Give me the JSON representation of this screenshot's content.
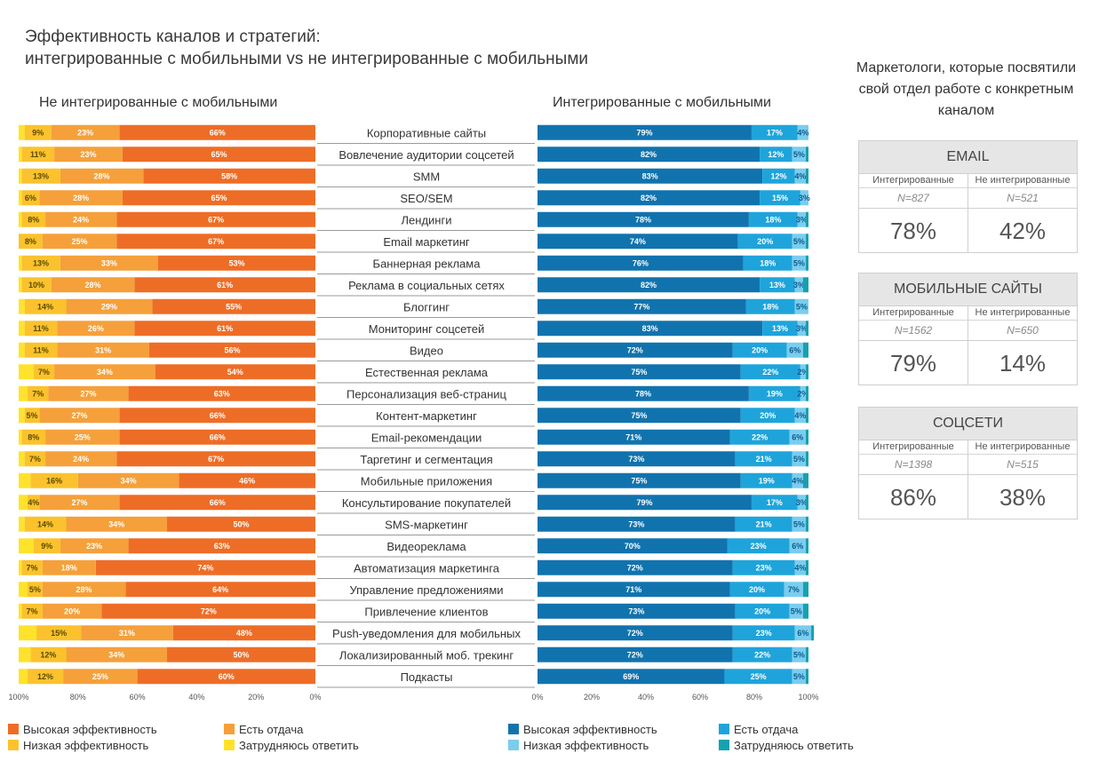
{
  "title": {
    "line1": "Эффективность каналов и стратегий:",
    "line2": "интегрированные с мобильными vs не интегрированные с мобильными"
  },
  "colors": {
    "left": {
      "high": "#ee6d26",
      "return": "#f5a03a",
      "low": "#fbc22d",
      "unsure": "#ffe22c"
    },
    "right": {
      "high": "#1173ae",
      "return": "#1ea4db",
      "low": "#7acdee",
      "unsure": "#15a1b0"
    }
  },
  "chart_data": [
    {
      "type": "bar",
      "orientation": "horizontal-stacked",
      "direction": "right-to-left",
      "title": "Не интегрированные с мобильными",
      "xlim": [
        0,
        100
      ],
      "xticks": [
        "100%",
        "80%",
        "60%",
        "40%",
        "20%",
        "0%"
      ],
      "categories": [
        "Корпоративные сайты",
        "Вовлечение аудитории соцсетей",
        "SMM",
        "SEO/SEM",
        "Лендинги",
        "Email маркетинг",
        "Баннерная реклама",
        "Реклама в социальных сетях",
        "Блоггинг",
        "Мониторинг соцсетей",
        "Видео",
        "Естественная реклама",
        "Персонализация веб-страниц",
        "Контент-маркетинг",
        "Email-рекомендации",
        "Таргетинг и сегментация",
        "Мобильные приложения",
        "Консультирование покупателей",
        "SMS-маркетинг",
        "Видеореклама",
        "Автоматизация маркетинга",
        "Управление предложениями",
        "Привлечение клиентов",
        "Push-уведомления для мобильных",
        "Локализированный моб. трекинг",
        "Подкасты"
      ],
      "series": [
        {
          "name": "Высокая эффективность",
          "values": [
            66,
            65,
            58,
            65,
            67,
            67,
            53,
            61,
            55,
            61,
            56,
            54,
            63,
            66,
            66,
            67,
            46,
            66,
            50,
            63,
            74,
            64,
            72,
            48,
            50,
            60
          ]
        },
        {
          "name": "Есть отдача",
          "values": [
            23,
            23,
            28,
            28,
            24,
            25,
            33,
            28,
            29,
            26,
            31,
            34,
            27,
            27,
            25,
            24,
            34,
            27,
            34,
            23,
            18,
            28,
            20,
            31,
            34,
            25
          ]
        },
        {
          "name": "Низкая эффективность",
          "values": [
            9,
            11,
            13,
            6,
            8,
            8,
            13,
            10,
            14,
            11,
            11,
            7,
            7,
            5,
            8,
            7,
            16,
            4,
            14,
            9,
            7,
            5,
            7,
            15,
            12,
            12
          ]
        },
        {
          "name": "Затрудняюсь ответить",
          "values": [
            2,
            1,
            1,
            1,
            1,
            0,
            1,
            1,
            2,
            2,
            2,
            5,
            3,
            2,
            1,
            2,
            4,
            3,
            2,
            5,
            1,
            3,
            1,
            6,
            4,
            3
          ]
        }
      ]
    },
    {
      "type": "bar",
      "orientation": "horizontal-stacked",
      "direction": "left-to-right",
      "title": "Интегрированные с мобильными",
      "xlim": [
        0,
        100
      ],
      "xticks": [
        "0%",
        "20%",
        "40%",
        "60%",
        "80%",
        "100%"
      ],
      "series": [
        {
          "name": "Высокая эффективность",
          "values": [
            79,
            82,
            83,
            82,
            78,
            74,
            76,
            82,
            77,
            83,
            72,
            75,
            78,
            75,
            71,
            73,
            75,
            79,
            73,
            70,
            72,
            71,
            73,
            72,
            72,
            69
          ]
        },
        {
          "name": "Есть отдача",
          "values": [
            17,
            12,
            12,
            15,
            18,
            20,
            18,
            13,
            18,
            13,
            20,
            22,
            19,
            20,
            22,
            21,
            19,
            17,
            21,
            23,
            23,
            20,
            20,
            23,
            22,
            25
          ]
        },
        {
          "name": "Низкая эффективность",
          "values": [
            4,
            5,
            4,
            3,
            3,
            5,
            5,
            3,
            5,
            3,
            6,
            2,
            2,
            4,
            6,
            5,
            4,
            3,
            5,
            6,
            4,
            7,
            5,
            6,
            5,
            5
          ]
        },
        {
          "name": "Затрудняюсь ответить",
          "values": [
            0,
            1,
            1,
            0,
            1,
            1,
            1,
            2,
            0,
            1,
            2,
            1,
            1,
            1,
            1,
            1,
            2,
            1,
            1,
            1,
            1,
            2,
            2,
            1,
            1,
            1
          ]
        }
      ]
    }
  ],
  "legend": {
    "high": "Высокая эффективность",
    "return": "Есть отдача",
    "low": "Низкая эффективность",
    "unsure": "Затрудняюсь ответить"
  },
  "side": {
    "title": "Маркетологи, которые посвятили свой отдел работе с конкретным каналом",
    "col_integrated": "Интегрированные",
    "col_not_integrated": "Не интегрированные",
    "boxes": [
      {
        "header": "EMAIL",
        "n_integrated": "N=827",
        "n_not": "N=521",
        "pct_integrated": "78%",
        "pct_not": "42%"
      },
      {
        "header": "МОБИЛЬНЫЕ САЙТЫ",
        "n_integrated": "N=1562",
        "n_not": "N=650",
        "pct_integrated": "79%",
        "pct_not": "14%"
      },
      {
        "header": "СОЦСЕТИ",
        "n_integrated": "N=1398",
        "n_not": "N=515",
        "pct_integrated": "86%",
        "pct_not": "38%"
      }
    ]
  }
}
